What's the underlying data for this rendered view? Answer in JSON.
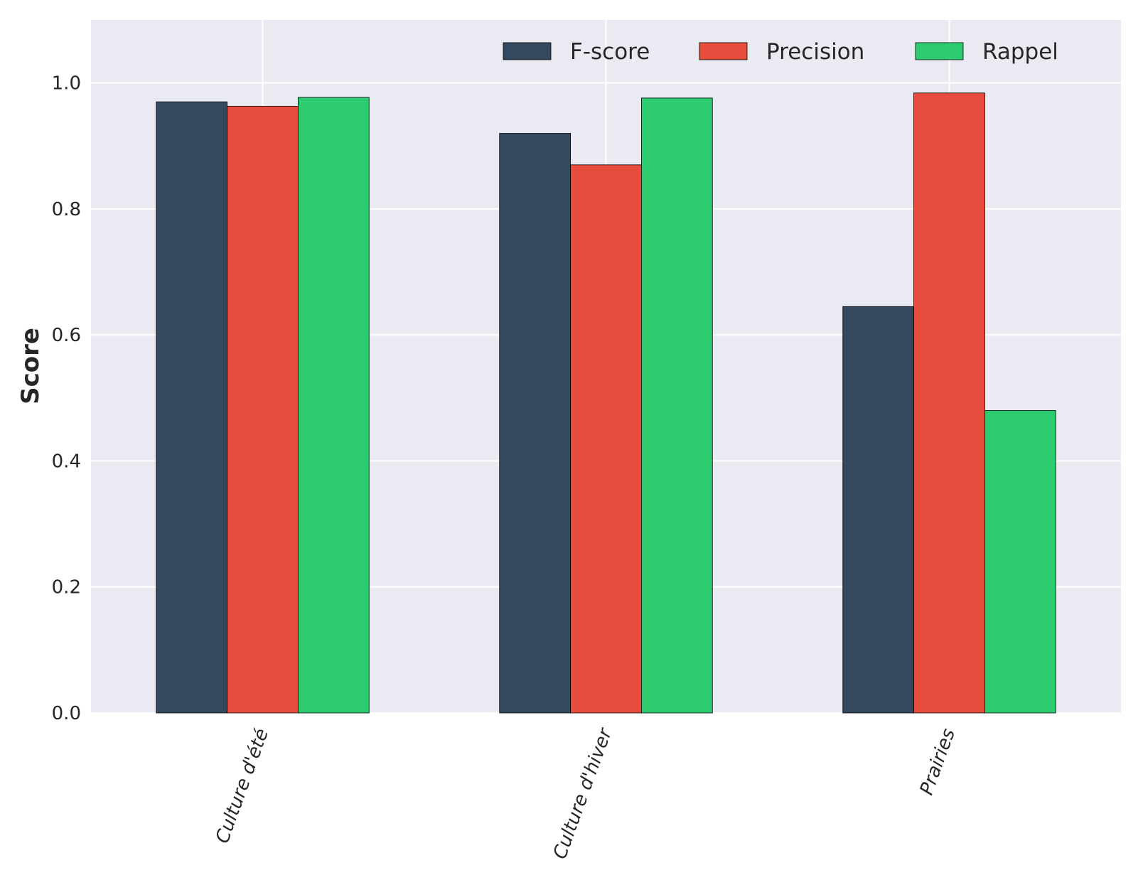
{
  "chart_data": {
    "type": "bar",
    "categories": [
      "Culture d'été",
      "Culture d'hiver",
      "Prairies"
    ],
    "series": [
      {
        "name": "F-score",
        "values": [
          0.97,
          0.92,
          0.645
        ],
        "color": "#34495e"
      },
      {
        "name": "Precision",
        "values": [
          0.963,
          0.87,
          0.984
        ],
        "color": "#e74c3c"
      },
      {
        "name": "Rappel",
        "values": [
          0.977,
          0.976,
          0.48
        ],
        "color": "#2ecc71"
      }
    ],
    "title": "",
    "xlabel": "",
    "ylabel": "Score",
    "ylim": [
      0,
      1.1
    ],
    "yticks": [
      "0.0",
      "0.2",
      "0.4",
      "0.6",
      "0.8",
      "1.0"
    ],
    "grid": true,
    "legend_position": "top-right",
    "background_color": "#eaeaf2",
    "grid_color": "#ffffff",
    "bar_edge_color": "#000000"
  }
}
